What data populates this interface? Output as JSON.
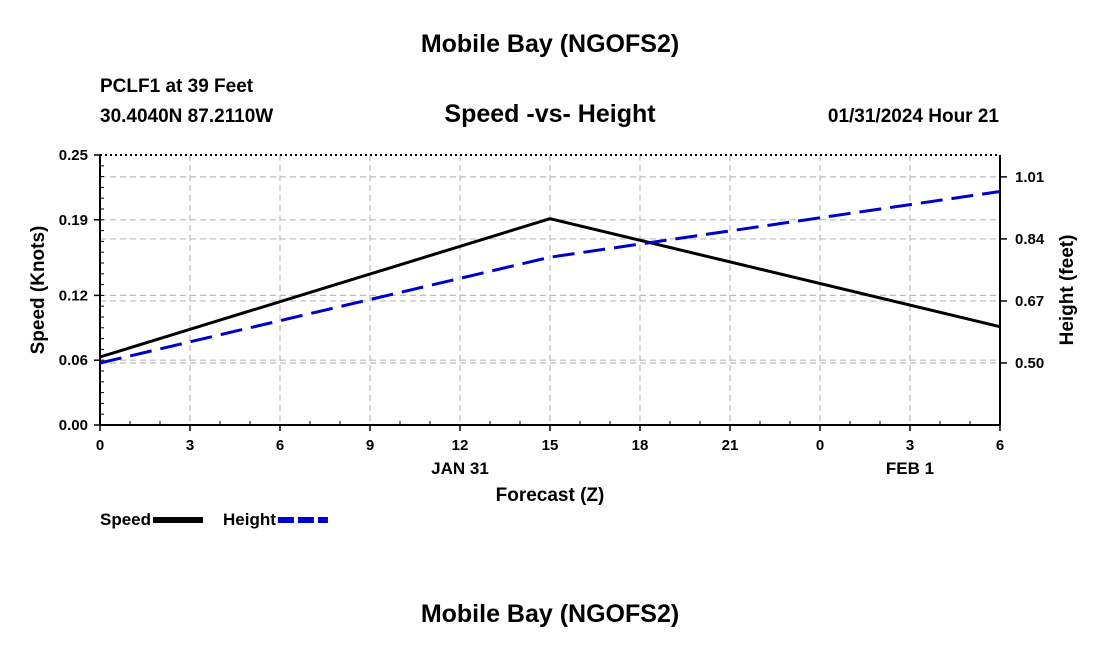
{
  "header": {
    "title": "Mobile Bay (NGOFS2)",
    "station": "PCLF1 at 39 Feet",
    "coordinates": "30.4040N  87.2110W",
    "subtitle": "Speed -vs- Height",
    "datetime": "01/31/2024 Hour 21"
  },
  "footer": {
    "title": "Mobile Bay (NGOFS2)"
  },
  "chart_data": {
    "type": "line",
    "title": "Speed -vs- Height",
    "xlabel": "Forecast (Z)",
    "ylabel": "Speed (Knots)",
    "y2label": "Height (feet)",
    "x": [
      0,
      3,
      6,
      9,
      12,
      15,
      18,
      21,
      24,
      27,
      30
    ],
    "x_tick_labels": [
      "0",
      "3",
      "6",
      "9",
      "12",
      "15",
      "18",
      "21",
      "0",
      "3",
      "6"
    ],
    "x_date_labels": [
      {
        "at": 12,
        "label": "JAN 31"
      },
      {
        "at": 27,
        "label": "FEB 1"
      }
    ],
    "xlim": [
      0,
      30
    ],
    "ylim": [
      0,
      0.25
    ],
    "y_ticks": [
      "0.00",
      "0.06",
      "0.12",
      "0.19",
      "0.25"
    ],
    "y2lim": [
      0.33,
      1.07
    ],
    "y2_ticks": [
      "0.50",
      "0.67",
      "0.84",
      "1.01"
    ],
    "grid": true,
    "legend_position": "bottom-left",
    "series": [
      {
        "name": "Speed",
        "axis": "left",
        "color": "#000000",
        "style": "solid",
        "x": [
          0,
          15,
          30
        ],
        "values": [
          0.063,
          0.191,
          0.091
        ]
      },
      {
        "name": "Height",
        "axis": "right",
        "color": "#0000cc",
        "style": "dashed",
        "x": [
          0,
          15,
          30
        ],
        "values": [
          0.5,
          0.79,
          0.97
        ]
      }
    ]
  }
}
